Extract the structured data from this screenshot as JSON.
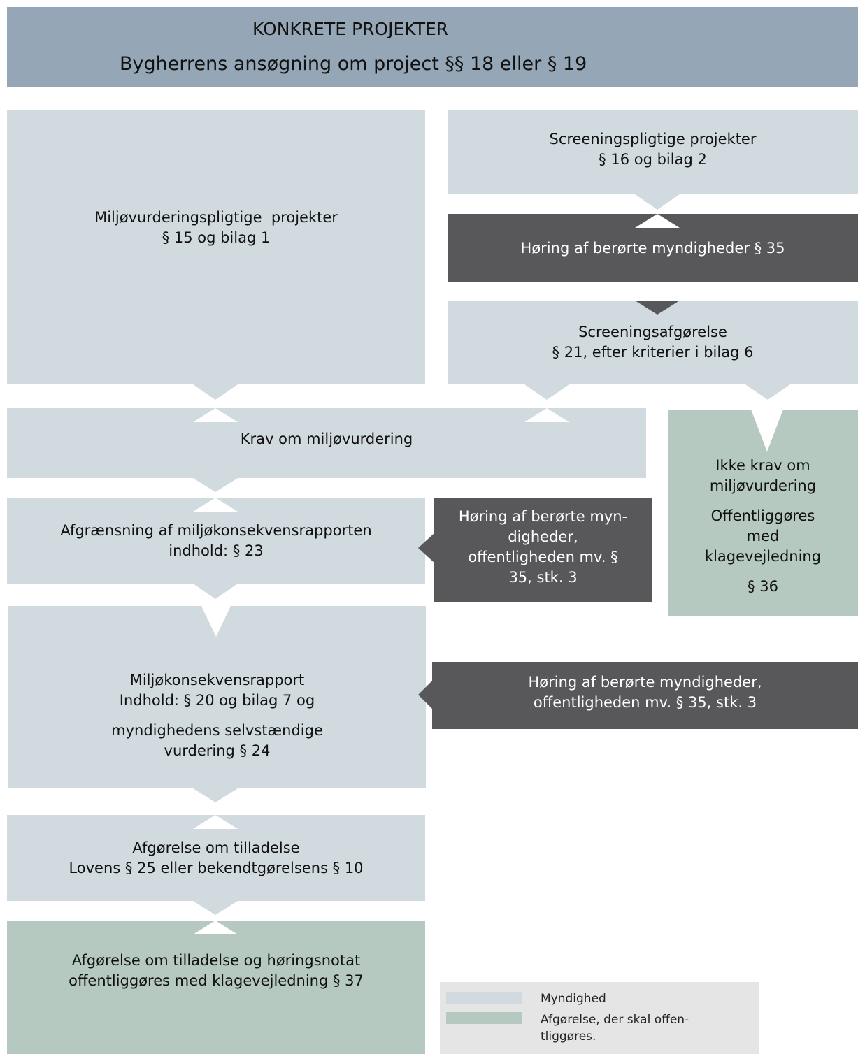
{
  "header": {
    "title": "KONKRETE PROJEKTER",
    "subtitle": "Bygherrens ansøgning om project §§ 18 eller § 19"
  },
  "boxes": {
    "miljovurderingspligtige": [
      "Miljøvurderingspligtige  projekter",
      "§ 15 og bilag 1"
    ],
    "screeningspligtige": [
      "Screeningspligtige projekter",
      "§ 16 og bilag 2"
    ],
    "horing_35": [
      "Høring af berørte myndigheder § 35"
    ],
    "screeningsafgorelse": [
      "Screeningsafgørelse",
      "§ 21, efter kriterier i bilag 6"
    ],
    "krav": [
      "Krav om miljøvurdering"
    ],
    "ikke_krav": {
      "a": [
        "Ikke krav om",
        "miljøvurdering"
      ],
      "b": [
        "Offentliggøres",
        "med",
        "klagevejledning"
      ],
      "c": [
        "§ 36"
      ]
    },
    "afgraensning": [
      "Afgrænsning af miljøkonsekvensrapporten",
      "indhold: § 23"
    ],
    "horing_stk3_a": [
      "Høring af berørte myn-",
      "digheder,",
      "offentligheden mv. §",
      "35, stk. 3"
    ],
    "rapport": {
      "a": [
        "Miljøkonsekvensrapport",
        "Indhold: § 20 og bilag 7 og"
      ],
      "b": [
        "myndighedens selvstændige",
        "vurdering § 24"
      ]
    },
    "horing_stk3_b": [
      "Høring af berørte myndigheder,",
      "offentligheden mv. § 35, stk. 3"
    ],
    "afgorelse": [
      "Afgørelse om tilladelse",
      "Lovens § 25 eller bekendtgørelsens § 10"
    ],
    "offentliggorelse": [
      "Afgørelse om tilladelse og høringsnotat",
      "offentliggøres med klagevejledning § 37"
    ]
  },
  "legend": {
    "items": [
      {
        "label": "Myndighed",
        "color": "#d1dadf"
      },
      {
        "label": "Afgørelse, der skal offen-\ntliggøres.",
        "color": "#b5c9c0"
      }
    ]
  },
  "colors": {
    "header": "#95a6b6",
    "authority": "#d1dadf",
    "published": "#b5c9c0",
    "consultation": "#58585a"
  }
}
